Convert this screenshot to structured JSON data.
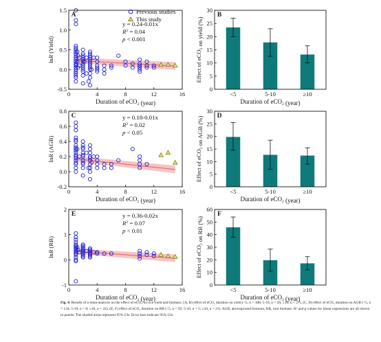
{
  "chart_data": [
    {
      "panel": "A",
      "type": "scatter",
      "xlabel": "Duration of eCO2 (year)",
      "ylabel": "lnR (Yield)",
      "xlim": [
        0,
        16
      ],
      "ylim": [
        -0.5,
        1.5
      ],
      "xticks": [
        "0",
        "4",
        "8",
        "12",
        "16"
      ],
      "yticks": [
        "-0.5",
        "0.0",
        "0.5",
        "1.0",
        "1.5"
      ],
      "legend": [
        "Previous studies",
        "This study"
      ],
      "annotations": [
        "y = 0.24-0.01x",
        "R2 = 0.04",
        "p < 0.001"
      ],
      "series": [
        {
          "name": "Previous studies",
          "x": [
            1,
            1,
            1,
            1,
            1,
            1,
            1,
            1,
            1,
            1,
            1,
            1,
            1,
            1,
            1,
            1,
            1,
            1,
            1,
            1,
            1,
            1,
            1.2,
            1.2,
            1.3,
            1.3,
            1.5,
            1.5,
            2,
            2,
            2,
            2,
            2,
            2,
            2,
            2,
            2,
            2,
            2,
            2,
            2,
            2.2,
            2.5,
            2.5,
            2.8,
            3,
            3,
            3,
            3,
            3,
            3,
            3,
            3,
            3,
            3,
            3,
            3,
            3,
            3.2,
            3.5,
            4,
            4,
            4,
            4,
            4,
            4,
            5,
            5,
            5,
            6,
            6,
            7,
            8,
            8,
            9,
            9,
            10,
            10,
            10,
            10,
            10,
            10,
            10,
            11,
            11,
            11,
            12,
            12
          ],
          "y": [
            1.5,
            1.25,
            1.15,
            0.6,
            0.55,
            0.5,
            0.45,
            0.4,
            0.35,
            0.3,
            0.25,
            0.2,
            0.15,
            0.12,
            0.1,
            0.05,
            0.0,
            -0.05,
            -0.1,
            -0.15,
            -0.2,
            -0.3,
            0.45,
            0.2,
            0.35,
            0.05,
            0.3,
            0.1,
            0.5,
            0.4,
            0.35,
            0.3,
            0.25,
            0.2,
            0.15,
            0.1,
            0.05,
            0.0,
            -0.05,
            -0.15,
            -0.35,
            0.2,
            0.3,
            -0.1,
            -0.3,
            0.45,
            0.4,
            0.35,
            0.3,
            0.25,
            0.2,
            0.15,
            0.1,
            0.05,
            0.0,
            -0.1,
            -0.2,
            -0.4,
            0.0,
            0.3,
            0.3,
            0.2,
            0.1,
            0.05,
            0.0,
            -0.05,
            0.1,
            0.0,
            -0.1,
            0.05,
            0.1,
            0.35,
            0.2,
            0.1,
            0.15,
            0.05,
            0.25,
            0.15,
            0.1,
            0.05,
            0.0,
            -0.05,
            0.1,
            0.2,
            0.1,
            0.05,
            0.1,
            0.05
          ]
        },
        {
          "name": "This study",
          "x": [
            13,
            14,
            15
          ],
          "y": [
            0.12,
            0.12,
            0.1
          ]
        }
      ],
      "fit": {
        "intercept": 0.24,
        "slope": -0.01,
        "xrange": [
          1,
          15
        ]
      }
    },
    {
      "panel": "C",
      "type": "scatter",
      "xlabel": "Duration of eCO2 (year)",
      "ylabel": "lnR (AGB)",
      "xlim": [
        0,
        16
      ],
      "ylim": [
        -0.2,
        0.8
      ],
      "xticks": [
        "0",
        "4",
        "8",
        "12",
        "16"
      ],
      "yticks": [
        "-0.2",
        "0.0",
        "0.2",
        "0.4",
        "0.6",
        "0.8"
      ],
      "annotations": [
        "y = 0.18-0.01x",
        "R2 = 0.02",
        "p < 0.05"
      ],
      "series": [
        {
          "name": "Previous studies",
          "x": [
            1,
            1,
            1,
            1,
            1,
            1,
            1,
            1,
            1,
            1,
            1,
            1,
            1,
            1,
            1,
            1,
            1,
            1,
            1,
            1.2,
            1.5,
            2,
            2,
            2,
            2,
            2,
            2,
            2,
            2,
            2,
            2,
            2,
            2,
            2.5,
            2.8,
            3,
            3,
            3,
            3,
            3,
            3,
            3,
            3,
            3,
            3,
            3.2,
            3.5,
            4,
            4,
            4,
            4,
            5,
            5,
            6,
            6,
            7,
            9,
            10,
            10,
            10,
            10,
            11
          ],
          "y": [
            0.65,
            0.6,
            0.55,
            0.45,
            0.42,
            0.4,
            0.35,
            0.32,
            0.3,
            0.28,
            0.25,
            0.22,
            0.2,
            0.18,
            0.15,
            0.12,
            0.1,
            0.05,
            0.0,
            0.3,
            0.2,
            0.4,
            0.35,
            0.32,
            0.3,
            0.25,
            0.22,
            0.2,
            0.15,
            0.12,
            0.1,
            0.05,
            -0.05,
            0.25,
            0.05,
            0.35,
            0.3,
            0.25,
            0.2,
            0.18,
            0.15,
            0.1,
            0.05,
            0.0,
            -0.1,
            0.12,
            0.2,
            0.2,
            0.15,
            0.1,
            0.05,
            0.1,
            0.05,
            0.1,
            0.05,
            0.15,
            0.3,
            0.1,
            0.15,
            0.2,
            0.05,
            0.1
          ]
        },
        {
          "name": "This study",
          "x": [
            13,
            14,
            15
          ],
          "y": [
            0.22,
            0.25,
            0.12
          ]
        }
      ],
      "fit": {
        "intercept": 0.18,
        "slope": -0.01,
        "xrange": [
          1,
          15
        ]
      }
    },
    {
      "panel": "E",
      "type": "scatter",
      "xlabel": "Duration of eCO2 (year)",
      "ylabel": "lnR (RB)",
      "xlim": [
        0,
        16
      ],
      "ylim": [
        -1,
        2
      ],
      "xticks": [
        "0",
        "4",
        "8",
        "12",
        "16"
      ],
      "yticks": [
        "-1",
        "0",
        "1",
        "2"
      ],
      "annotations": [
        "y = 0.36-0.02x",
        "R2 = 0.07",
        "p < 0.01"
      ],
      "series": [
        {
          "name": "Previous studies",
          "x": [
            1,
            1,
            1,
            1,
            1,
            1,
            1,
            1,
            1,
            1,
            1,
            1,
            1,
            1,
            1,
            1,
            1,
            1.2,
            1.3,
            1.5,
            2,
            2,
            2,
            2,
            2,
            2,
            2,
            2,
            2,
            2,
            2,
            2.5,
            3,
            3,
            3,
            3,
            3,
            3,
            3,
            3,
            3.5,
            4,
            4,
            5,
            6,
            10,
            10,
            10,
            10,
            11,
            11,
            12,
            12
          ],
          "y": [
            1.05,
            0.9,
            0.8,
            0.7,
            0.6,
            0.55,
            0.5,
            0.45,
            0.4,
            0.35,
            0.3,
            0.25,
            0.2,
            0.1,
            0.0,
            -0.05,
            -0.85,
            0.5,
            0.4,
            0.3,
            0.6,
            0.55,
            0.5,
            0.45,
            0.4,
            0.35,
            0.3,
            0.25,
            0.2,
            0.15,
            0.1,
            0.35,
            0.45,
            0.4,
            0.35,
            0.3,
            0.25,
            0.2,
            0.15,
            0.1,
            0.3,
            0.3,
            0.25,
            0.25,
            0.25,
            0.35,
            0.25,
            0.15,
            0.05,
            0.3,
            0.2,
            0.25,
            0.15
          ]
        },
        {
          "name": "This study",
          "x": [
            13,
            14,
            15
          ],
          "y": [
            0.2,
            0.15,
            0.12
          ]
        }
      ],
      "fit": {
        "intercept": 0.36,
        "slope": -0.02,
        "xrange": [
          1,
          15
        ]
      }
    },
    {
      "panel": "B",
      "type": "bar",
      "categories": [
        "<5",
        "5-10",
        "≥10"
      ],
      "values": [
        23.5,
        17.8,
        13.2
      ],
      "err_low": [
        20,
        12.5,
        10
      ],
      "err_high": [
        27,
        23,
        16.5
      ],
      "xlabel": "Duration of eCO2 (year)",
      "ylabel": "Effect of eCO2 on yield (%)",
      "ylim": [
        0,
        30
      ],
      "yticks": [
        "0",
        "5",
        "10",
        "15",
        "20",
        "25",
        "30"
      ]
    },
    {
      "panel": "D",
      "type": "bar",
      "categories": [
        "<5",
        "5-10",
        "≥10"
      ],
      "values": [
        19.8,
        12.7,
        12.4
      ],
      "err_low": [
        14.5,
        7,
        9
      ],
      "err_high": [
        25.5,
        18.5,
        15.5
      ],
      "xlabel": "Duration of eCO2 (year)",
      "ylabel": "Effect of eCO2 on AGB (%)",
      "ylim": [
        0,
        30
      ],
      "yticks": [
        "0",
        "5",
        "10",
        "15",
        "20",
        "25",
        "30"
      ]
    },
    {
      "panel": "F",
      "type": "bar",
      "categories": [
        "<5",
        "5-10",
        "≥10"
      ],
      "values": [
        45.8,
        19.7,
        17.2
      ],
      "err_low": [
        38,
        11,
        12
      ],
      "err_high": [
        54,
        28.5,
        22.5
      ],
      "xlabel": "Duration of eCO2 (year)",
      "ylabel": "Effect of eCO2 on RB (%)",
      "ylim": [
        0,
        60
      ],
      "yticks": [
        "0",
        "10",
        "20",
        "30",
        "40",
        "50",
        "60"
      ]
    }
  ],
  "colors": {
    "previous": "#2222cc",
    "this_study": "#8a7a00",
    "fill_this": "#e3dc8a",
    "bar": "#0f7a7a",
    "fit_band": "#f4b4b4",
    "fit_line": "#e06060"
  },
  "caption": {
    "label": "Fig. 4.",
    "text": "Results of a meta-analysis on the effect of eCO₂ on rice yield and biomass. (A, B) effect of eCO₂ duration on yield (<5, n = 188; 5-10, n = 26; ≥10, n = 27), (C, D) effect of eCO₂ duration on AGB (<5, n = 134; 5-10, n = 8; ≥10, n = 22), (E, F) effect of eCO₂ duration on RB (<5, n = 92; 5-10, n = 5; ≥10, n = 21). AGB, aboveground biomass; RB, root biomass. R² and p values for linear regressions are all shown in panels. The shaded areas represent 95% CIs. Error bars indicate 95% CIs."
  }
}
